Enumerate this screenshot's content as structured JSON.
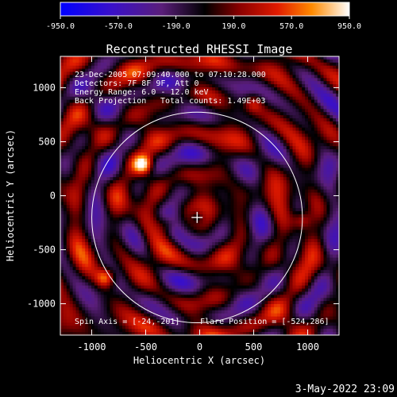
{
  "chart_data": {
    "type": "heatmap",
    "title": "Reconstructed RHESSI Image",
    "xlabel": "Heliocentric X (arcsec)",
    "ylabel": "Heliocentric Y (arcsec)",
    "xlim": [
      -1290,
      1290
    ],
    "ylim": [
      -1290,
      1290
    ],
    "x_ticks": [
      -1000,
      -500,
      0,
      500,
      1000
    ],
    "y_ticks": [
      -1000,
      -500,
      0,
      500,
      1000
    ],
    "colorbar": {
      "range": [
        -950.0,
        950.0
      ],
      "tick_values": [
        -950,
        -570,
        -190,
        190,
        570,
        950
      ],
      "tick_labels": [
        "-950.0",
        "-570.0",
        "-190.0",
        "190.0",
        "570.0",
        "950.0"
      ]
    },
    "annotations": [
      "23-Dec-2005 07:09:40.000 to 07:10:28.000",
      "Detectors: 7F 8F 9F, Att 0",
      "Energy Range: 6.0 - 12.0 keV",
      "Back Projection",
      "Total counts: 1.49E+03",
      "Spin Axis = [-24,-201]",
      "Flare Position = [-524,286]"
    ],
    "solar_limb_radius_arcsec": 975,
    "sun_center_marker": [
      -24,
      -201
    ],
    "bright_sources": [
      {
        "x": -524,
        "y": 286,
        "level": 950
      },
      {
        "x": -870,
        "y": -760,
        "level": 780
      },
      {
        "x": 950,
        "y": -230,
        "level": 520
      },
      {
        "x": 500,
        "y": 860,
        "level": 480
      },
      {
        "x": -300,
        "y": -260,
        "level": 420
      }
    ],
    "timestamp": "3-May-2022 23:09"
  }
}
